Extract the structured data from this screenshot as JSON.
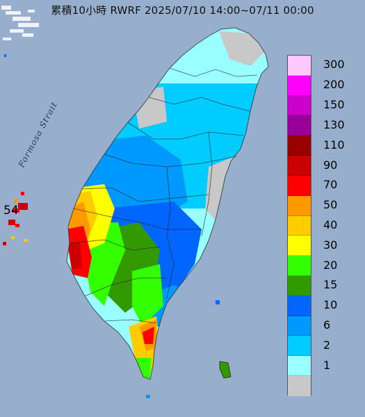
{
  "title": "累積10小時 RWRF 2025/07/10 14:00~07/11 00:00",
  "strait_label": "Formosa Strait",
  "station_value": "54",
  "legend": [
    {
      "label": "300",
      "color": "#ffc8ff"
    },
    {
      "label": "200",
      "color": "#ff00ff"
    },
    {
      "label": "150",
      "color": "#cc00cc"
    },
    {
      "label": "130",
      "color": "#990099"
    },
    {
      "label": "110",
      "color": "#990000"
    },
    {
      "label": "90",
      "color": "#cc0000"
    },
    {
      "label": "70",
      "color": "#ff0000"
    },
    {
      "label": "50",
      "color": "#ff9900"
    },
    {
      "label": "40",
      "color": "#ffcc00"
    },
    {
      "label": "30",
      "color": "#ffff00"
    },
    {
      "label": "20",
      "color": "#33ff00"
    },
    {
      "label": "15",
      "color": "#339900"
    },
    {
      "label": "10",
      "color": "#0066ff"
    },
    {
      "label": "6",
      "color": "#0099ff"
    },
    {
      "label": "2",
      "color": "#00ccff"
    },
    {
      "label": "1",
      "color": "#99ffff"
    },
    {
      "label": "",
      "color": "#c8c8c8"
    }
  ],
  "colors": {
    "sea": "#8fa8c6",
    "land_dry": "#c8c8c8",
    "rain_1": "#99ffff",
    "rain_2": "#00ccff",
    "rain_6": "#0099ff",
    "rain_10": "#0066ff",
    "rain_15": "#339900",
    "rain_20": "#33ff00",
    "rain_30": "#ffff00",
    "rain_40": "#ffcc00",
    "rain_50": "#ff9900",
    "rain_70": "#ff0000",
    "rain_90": "#cc0000"
  }
}
